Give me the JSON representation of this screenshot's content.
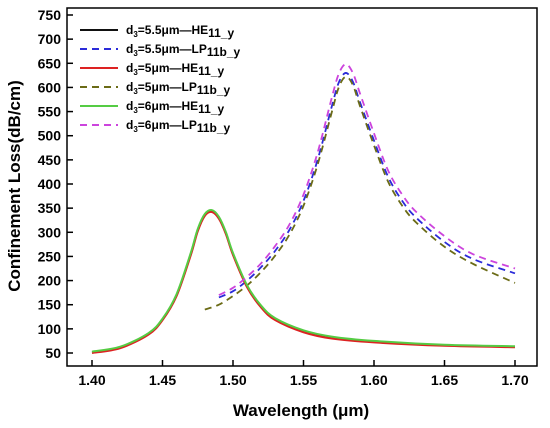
{
  "chart_data": {
    "type": "line",
    "xlabel": "Wavelength (μm)",
    "ylabel": "Confinement Loss(dB/cm)",
    "xlim": [
      1.4,
      1.7
    ],
    "ylim": [
      40,
      750
    ],
    "x_ticks": [
      "1.40",
      "1.45",
      "1.50",
      "1.55",
      "1.60",
      "1.65",
      "1.70"
    ],
    "y_ticks": [
      "50",
      "100",
      "150",
      "200",
      "250",
      "300",
      "350",
      "400",
      "450",
      "500",
      "550",
      "600",
      "650",
      "700",
      "750"
    ],
    "grid": false,
    "legend_position": "top-left",
    "series": [
      {
        "name": "d3=5.5μm—HE11_y",
        "legend": {
          "d": "d",
          "d_sub": "3",
          "mid": "=5.5μm—HE",
          "mode_sub": "11_y"
        },
        "color": "#111111",
        "dash": "solid",
        "x": [
          1.4,
          1.42,
          1.44,
          1.45,
          1.46,
          1.47,
          1.475,
          1.48,
          1.485,
          1.49,
          1.495,
          1.5,
          1.51,
          1.52,
          1.53,
          1.55,
          1.57,
          1.6,
          1.65,
          1.7
        ],
        "y": [
          52,
          62,
          90,
          120,
          170,
          255,
          305,
          336,
          344,
          330,
          298,
          255,
          188,
          146,
          120,
          95,
          82,
          73,
          66,
          63
        ]
      },
      {
        "name": "d3=5.5μm—LP11b_y",
        "legend": {
          "d": "d",
          "d_sub": "3",
          "mid": "=5.5μm—LP",
          "mode_sub": "11b_y"
        },
        "color": "#2b2bd9",
        "dash": "7,5",
        "x": [
          1.49,
          1.5,
          1.51,
          1.52,
          1.53,
          1.54,
          1.55,
          1.56,
          1.57,
          1.575,
          1.58,
          1.585,
          1.59,
          1.6,
          1.61,
          1.62,
          1.63,
          1.65,
          1.67,
          1.7
        ],
        "y": [
          165,
          178,
          200,
          228,
          262,
          305,
          365,
          450,
          560,
          610,
          630,
          612,
          570,
          490,
          415,
          365,
          330,
          280,
          245,
          215
        ]
      },
      {
        "name": "d3=5μm—HE11_y",
        "legend": {
          "d": "d",
          "d_sub": "3",
          "mid": "=5μm—HE",
          "mode_sub": "11_y"
        },
        "color": "#dd2222",
        "dash": "solid",
        "x": [
          1.4,
          1.42,
          1.44,
          1.45,
          1.46,
          1.47,
          1.475,
          1.48,
          1.485,
          1.49,
          1.495,
          1.5,
          1.51,
          1.52,
          1.53,
          1.55,
          1.57,
          1.6,
          1.65,
          1.7
        ],
        "y": [
          50,
          60,
          88,
          118,
          168,
          252,
          302,
          334,
          342,
          328,
          296,
          253,
          186,
          144,
          118,
          93,
          80,
          72,
          65,
          62
        ]
      },
      {
        "name": "d3=5μm—LP11b_y",
        "legend": {
          "d": "d",
          "d_sub": "3",
          "mid": "=5μm—LP",
          "mode_sub": "11b_y"
        },
        "color": "#6b6b16",
        "dash": "7,5",
        "x": [
          1.48,
          1.49,
          1.5,
          1.51,
          1.52,
          1.53,
          1.54,
          1.55,
          1.56,
          1.57,
          1.575,
          1.58,
          1.585,
          1.59,
          1.6,
          1.61,
          1.62,
          1.63,
          1.65,
          1.67,
          1.7
        ],
        "y": [
          140,
          150,
          168,
          190,
          218,
          252,
          295,
          355,
          440,
          548,
          600,
          622,
          605,
          562,
          480,
          405,
          355,
          320,
          270,
          235,
          195
        ]
      },
      {
        "name": "d3=6μm—HE11_y",
        "legend": {
          "d": "d",
          "d_sub": "3",
          "mid": "=6μm—HE",
          "mode_sub": "11_y"
        },
        "color": "#55cc44",
        "dash": "solid",
        "x": [
          1.4,
          1.42,
          1.44,
          1.45,
          1.46,
          1.47,
          1.475,
          1.48,
          1.485,
          1.49,
          1.495,
          1.5,
          1.51,
          1.52,
          1.53,
          1.55,
          1.57,
          1.6,
          1.65,
          1.7
        ],
        "y": [
          53,
          63,
          91,
          121,
          172,
          257,
          307,
          338,
          346,
          332,
          300,
          257,
          190,
          148,
          122,
          97,
          84,
          75,
          67,
          64
        ]
      },
      {
        "name": "d3=6μm—LP11b_y",
        "legend": {
          "d": "d",
          "d_sub": "3",
          "mid": "=6μm—LP",
          "mode_sub": "11b_y"
        },
        "color": "#cc44dd",
        "dash": "7,5",
        "x": [
          1.49,
          1.5,
          1.51,
          1.52,
          1.53,
          1.54,
          1.55,
          1.56,
          1.57,
          1.575,
          1.58,
          1.585,
          1.59,
          1.6,
          1.61,
          1.62,
          1.63,
          1.65,
          1.67,
          1.7
        ],
        "y": [
          170,
          185,
          208,
          236,
          272,
          316,
          378,
          465,
          578,
          628,
          648,
          630,
          588,
          505,
          428,
          378,
          342,
          292,
          255,
          225
        ]
      }
    ]
  }
}
